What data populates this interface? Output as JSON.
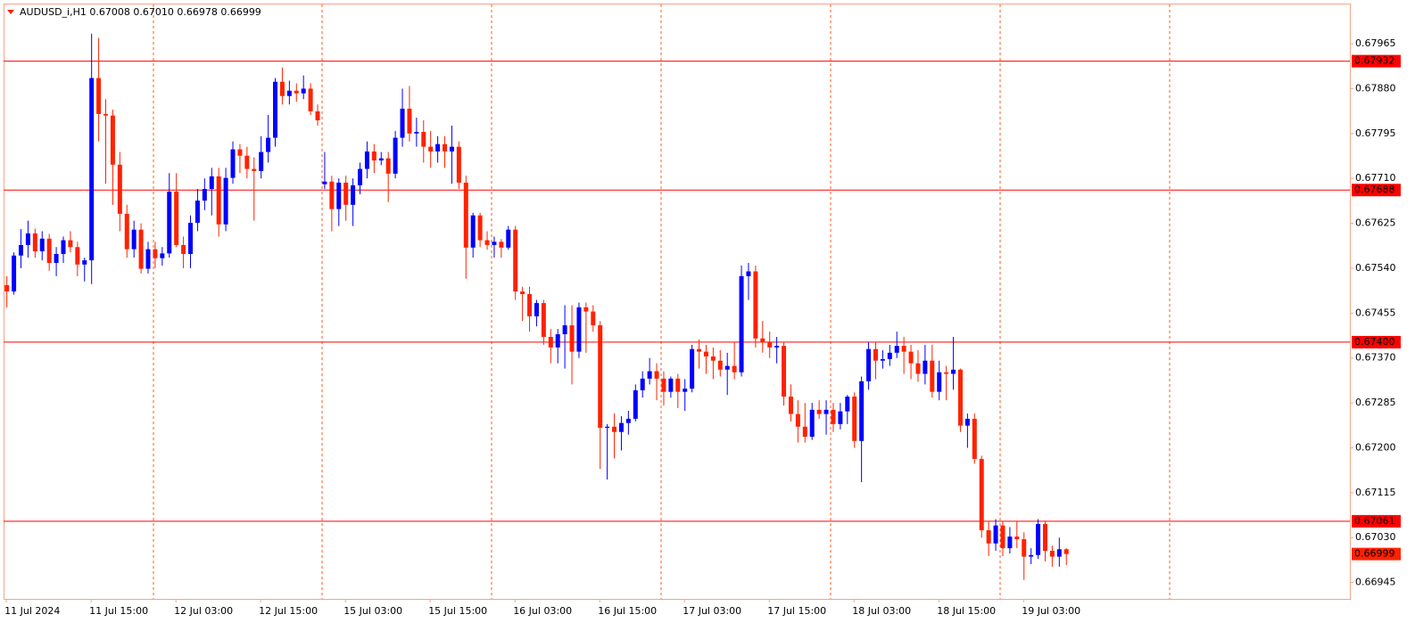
{
  "chart_data": {
    "type": "candlestick",
    "title": "AUDUSD_i,H1  0.67008 0.67010 0.66978 0.66999",
    "bull_color": "#0000ff",
    "bear_color": "#ff2200",
    "level_color": "#ff0000",
    "grid": true,
    "ylim": [
      0.66914,
      0.68041
    ],
    "yticks": [
      0.66945,
      {
        "value": 0.6703,
        "label": "0.67030"
      },
      0.67115,
      {
        "value": 0.672,
        "label": "0.67200"
      },
      0.67285,
      {
        "value": 0.6737,
        "label": "0.67370"
      },
      0.67455,
      {
        "value": 0.6754,
        "label": "0.67540"
      },
      0.67625,
      {
        "value": 0.6771,
        "label": "0.67710"
      },
      0.67795,
      {
        "value": 0.6788,
        "label": "0.67880"
      },
      0.67965
    ],
    "xlim": [
      -0.4,
      190.2
    ],
    "xticks": [
      {
        "value": 0,
        "label": "11 Jul 2024"
      },
      {
        "value": 12,
        "label": "11 Jul 15:00"
      },
      {
        "value": 24,
        "label": "12 Jul 03:00"
      },
      {
        "value": 36,
        "label": "12 Jul 15:00"
      },
      {
        "value": 48,
        "label": "15 Jul 03:00"
      },
      {
        "value": 60,
        "label": "15 Jul 15:00"
      },
      {
        "value": 72,
        "label": "16 Jul 03:00"
      },
      {
        "value": 84,
        "label": "16 Jul 15:00"
      },
      {
        "value": 96,
        "label": "17 Jul 03:00"
      },
      {
        "value": 108,
        "label": "17 Jul 15:00"
      },
      {
        "value": 120,
        "label": "18 Jul 03:00"
      },
      {
        "value": 132,
        "label": "18 Jul 15:00"
      },
      {
        "value": 144,
        "label": "19 Jul 03:00"
      }
    ],
    "levels": [
      0.67932,
      0.67688,
      {
        "value": 0.674,
        "label": "0.67400"
      },
      0.67061
    ],
    "last_price": 0.66999,
    "candles": [
      [
        0.67508,
        0.67525,
        0.67466,
        0.67496
      ],
      [
        0.67496,
        0.6757,
        0.6749,
        0.67564
      ],
      [
        0.67564,
        0.67614,
        0.6754,
        0.67584
      ],
      [
        0.67584,
        0.6763,
        0.6756,
        0.67606
      ],
      [
        0.67606,
        0.67615,
        0.6756,
        0.67572
      ],
      [
        0.67572,
        0.6761,
        0.67555,
        0.67596
      ],
      [
        0.67596,
        0.67605,
        0.67535,
        0.6755
      ],
      [
        0.6755,
        0.6758,
        0.67525,
        0.67567
      ],
      [
        0.67567,
        0.676,
        0.6755,
        0.67593
      ],
      [
        0.67593,
        0.6761,
        0.6757,
        0.6758
      ],
      [
        0.6758,
        0.6759,
        0.67525,
        0.67547
      ],
      [
        0.67547,
        0.6756,
        0.67515,
        0.67555
      ],
      [
        0.67555,
        0.67984,
        0.6751,
        0.679
      ],
      [
        0.679,
        0.67976,
        0.6778,
        0.67832
      ],
      [
        0.67832,
        0.6786,
        0.677,
        0.67829
      ],
      [
        0.67829,
        0.6784,
        0.6766,
        0.67736
      ],
      [
        0.67736,
        0.6776,
        0.6761,
        0.67643
      ],
      [
        0.67643,
        0.6766,
        0.6756,
        0.67576
      ],
      [
        0.67576,
        0.6763,
        0.6756,
        0.67613
      ],
      [
        0.67613,
        0.67625,
        0.6753,
        0.67539
      ],
      [
        0.67539,
        0.6759,
        0.6753,
        0.67576
      ],
      [
        0.67576,
        0.6759,
        0.6754,
        0.67559
      ],
      [
        0.67559,
        0.6758,
        0.67545,
        0.67568
      ],
      [
        0.67568,
        0.6772,
        0.6756,
        0.67685
      ],
      [
        0.67685,
        0.6772,
        0.6758,
        0.67584
      ],
      [
        0.67584,
        0.676,
        0.6754,
        0.67567
      ],
      [
        0.67567,
        0.6764,
        0.6754,
        0.67626
      ],
      [
        0.67626,
        0.6769,
        0.6761,
        0.67668
      ],
      [
        0.67668,
        0.6771,
        0.6765,
        0.6769
      ],
      [
        0.6769,
        0.6773,
        0.6764,
        0.67714
      ],
      [
        0.67714,
        0.6773,
        0.676,
        0.67623
      ],
      [
        0.67623,
        0.6773,
        0.6761,
        0.67711
      ],
      [
        0.67711,
        0.6778,
        0.677,
        0.67765
      ],
      [
        0.67765,
        0.67775,
        0.6772,
        0.67753
      ],
      [
        0.67753,
        0.6777,
        0.6771,
        0.67728
      ],
      [
        0.67728,
        0.6775,
        0.6763,
        0.67724
      ],
      [
        0.67724,
        0.6779,
        0.6771,
        0.6776
      ],
      [
        0.6776,
        0.6783,
        0.6774,
        0.67787
      ],
      [
        0.67787,
        0.679,
        0.6777,
        0.67893
      ],
      [
        0.67893,
        0.6792,
        0.6785,
        0.67866
      ],
      [
        0.67866,
        0.67895,
        0.6785,
        0.67876
      ],
      [
        0.67876,
        0.6789,
        0.67855,
        0.67871
      ],
      [
        0.67871,
        0.67905,
        0.6786,
        0.6788
      ],
      [
        0.6788,
        0.6789,
        0.6783,
        0.67837
      ],
      [
        0.67837,
        0.6785,
        0.6781,
        0.6782
      ],
      [
        0.67699,
        0.6776,
        0.6769,
        0.67704
      ],
      [
        0.67704,
        0.67715,
        0.6761,
        0.67652
      ],
      [
        0.67652,
        0.6771,
        0.6762,
        0.67702
      ],
      [
        0.67702,
        0.67715,
        0.6763,
        0.6766
      ],
      [
        0.6766,
        0.6771,
        0.6762,
        0.67697
      ],
      [
        0.67697,
        0.6774,
        0.6768,
        0.67728
      ],
      [
        0.67728,
        0.6778,
        0.6771,
        0.67761
      ],
      [
        0.67761,
        0.67775,
        0.6772,
        0.67744
      ],
      [
        0.67744,
        0.6776,
        0.67735,
        0.67748
      ],
      [
        0.67748,
        0.6776,
        0.67665,
        0.67719
      ],
      [
        0.67719,
        0.678,
        0.6771,
        0.67787
      ],
      [
        0.67787,
        0.6788,
        0.6777,
        0.67842
      ],
      [
        0.67842,
        0.67885,
        0.6778,
        0.67795
      ],
      [
        0.67795,
        0.67825,
        0.6777,
        0.67798
      ],
      [
        0.67798,
        0.6782,
        0.6774,
        0.6777
      ],
      [
        0.6777,
        0.678,
        0.6773,
        0.67761
      ],
      [
        0.67761,
        0.6779,
        0.6774,
        0.67775
      ],
      [
        0.67775,
        0.6779,
        0.6773,
        0.67761
      ],
      [
        0.67761,
        0.6781,
        0.677,
        0.6777
      ],
      [
        0.6777,
        0.6778,
        0.6769,
        0.67702
      ],
      [
        0.67702,
        0.67715,
        0.6752,
        0.67579
      ],
      [
        0.67579,
        0.67645,
        0.6756,
        0.6764
      ],
      [
        0.6764,
        0.67645,
        0.6758,
        0.67593
      ],
      [
        0.67593,
        0.6761,
        0.67575,
        0.67584
      ],
      [
        0.67584,
        0.676,
        0.6756,
        0.6759
      ],
      [
        0.6759,
        0.67595,
        0.6756,
        0.67579
      ],
      [
        0.67579,
        0.6762,
        0.67575,
        0.67613
      ],
      [
        0.67613,
        0.6762,
        0.6748,
        0.67496
      ],
      [
        0.67496,
        0.67505,
        0.6744,
        0.67491
      ],
      [
        0.67491,
        0.67505,
        0.6742,
        0.67449
      ],
      [
        0.67449,
        0.6748,
        0.6743,
        0.67474
      ],
      [
        0.67474,
        0.6748,
        0.67395,
        0.6741
      ],
      [
        0.6741,
        0.67425,
        0.6736,
        0.6739
      ],
      [
        0.6739,
        0.67425,
        0.6736,
        0.67415
      ],
      [
        0.67415,
        0.6747,
        0.6735,
        0.67432
      ],
      [
        0.67432,
        0.6747,
        0.6732,
        0.67382
      ],
      [
        0.67382,
        0.67475,
        0.6737,
        0.67466
      ],
      [
        0.67466,
        0.67475,
        0.6738,
        0.67458
      ],
      [
        0.67458,
        0.6747,
        0.6742,
        0.67432
      ],
      [
        0.67432,
        0.6744,
        0.6716,
        0.67238
      ],
      [
        0.67238,
        0.67245,
        0.6714,
        0.6724
      ],
      [
        0.6724,
        0.67265,
        0.6718,
        0.6723
      ],
      [
        0.6723,
        0.6726,
        0.67195,
        0.67247
      ],
      [
        0.67247,
        0.6727,
        0.67225,
        0.67255
      ],
      [
        0.67255,
        0.6732,
        0.6725,
        0.67309
      ],
      [
        0.67309,
        0.67345,
        0.67295,
        0.67331
      ],
      [
        0.67331,
        0.6737,
        0.6732,
        0.67345
      ],
      [
        0.67345,
        0.6736,
        0.6729,
        0.67331
      ],
      [
        0.67331,
        0.67345,
        0.6728,
        0.67306
      ],
      [
        0.67306,
        0.67335,
        0.67295,
        0.67331
      ],
      [
        0.67331,
        0.6734,
        0.67275,
        0.67306
      ],
      [
        0.67306,
        0.6733,
        0.6727,
        0.67312
      ],
      [
        0.67312,
        0.67395,
        0.67305,
        0.67387
      ],
      [
        0.67387,
        0.67405,
        0.6735,
        0.67382
      ],
      [
        0.67382,
        0.67395,
        0.6734,
        0.67373
      ],
      [
        0.67373,
        0.6739,
        0.6733,
        0.67365
      ],
      [
        0.67365,
        0.67385,
        0.67335,
        0.67348
      ],
      [
        0.67348,
        0.6738,
        0.673,
        0.67355
      ],
      [
        0.67355,
        0.674,
        0.6733,
        0.67343
      ],
      [
        0.67343,
        0.67545,
        0.67335,
        0.67525
      ],
      [
        0.67525,
        0.6755,
        0.6748,
        0.67534
      ],
      [
        0.67534,
        0.67545,
        0.6739,
        0.67407
      ],
      [
        0.67407,
        0.6744,
        0.6738,
        0.674
      ],
      [
        0.674,
        0.6742,
        0.6737,
        0.6739
      ],
      [
        0.6739,
        0.6741,
        0.6736,
        0.67393
      ],
      [
        0.67393,
        0.674,
        0.6728,
        0.67297
      ],
      [
        0.67297,
        0.6732,
        0.6725,
        0.67264
      ],
      [
        0.67264,
        0.6729,
        0.6721,
        0.6724
      ],
      [
        0.6724,
        0.67285,
        0.6721,
        0.67221
      ],
      [
        0.67221,
        0.67285,
        0.67215,
        0.67272
      ],
      [
        0.67272,
        0.6729,
        0.67255,
        0.67264
      ],
      [
        0.67264,
        0.6729,
        0.67225,
        0.67272
      ],
      [
        0.67272,
        0.67285,
        0.6723,
        0.67245
      ],
      [
        0.67245,
        0.67285,
        0.67235,
        0.67269
      ],
      [
        0.67269,
        0.673,
        0.67245,
        0.67297
      ],
      [
        0.67297,
        0.67305,
        0.672,
        0.67213
      ],
      [
        0.67213,
        0.67335,
        0.67135,
        0.67326
      ],
      [
        0.67326,
        0.674,
        0.6731,
        0.67387
      ],
      [
        0.67387,
        0.674,
        0.6733,
        0.67365
      ],
      [
        0.67365,
        0.67385,
        0.6735,
        0.67368
      ],
      [
        0.67368,
        0.67395,
        0.67355,
        0.6738
      ],
      [
        0.6738,
        0.6742,
        0.6737,
        0.67393
      ],
      [
        0.67393,
        0.6741,
        0.6734,
        0.67382
      ],
      [
        0.67382,
        0.67395,
        0.6733,
        0.6736
      ],
      [
        0.6736,
        0.67385,
        0.67325,
        0.6734
      ],
      [
        0.6734,
        0.67395,
        0.6732,
        0.67365
      ],
      [
        0.67365,
        0.67395,
        0.67295,
        0.67306
      ],
      [
        0.67306,
        0.67365,
        0.6729,
        0.67343
      ],
      [
        0.67343,
        0.67355,
        0.6729,
        0.6734
      ],
      [
        0.6734,
        0.6741,
        0.6731,
        0.67348
      ],
      [
        0.67348,
        0.6735,
        0.6723,
        0.67242
      ],
      [
        0.67242,
        0.67265,
        0.672,
        0.67255
      ],
      [
        0.67255,
        0.67265,
        0.6717,
        0.67179
      ],
      [
        0.67179,
        0.67185,
        0.6703,
        0.67044
      ],
      [
        0.67044,
        0.6706,
        0.66995,
        0.67019
      ],
      [
        0.67019,
        0.67065,
        0.67005,
        0.67053
      ],
      [
        0.67053,
        0.6706,
        0.66995,
        0.6701
      ],
      [
        0.6701,
        0.6705,
        0.67,
        0.67032
      ],
      [
        0.67032,
        0.6706,
        0.6701,
        0.67027
      ],
      [
        0.67027,
        0.6704,
        0.6695,
        0.66994
      ],
      [
        0.66994,
        0.6701,
        0.6698,
        0.66997
      ],
      [
        0.66997,
        0.67065,
        0.6699,
        0.67056
      ],
      [
        0.67056,
        0.67062,
        0.66985,
        0.67005
      ],
      [
        0.67005,
        0.67015,
        0.66975,
        0.66994
      ],
      [
        0.66994,
        0.6703,
        0.66975,
        0.67008
      ],
      [
        0.67008,
        0.6701,
        0.66978,
        0.66999
      ]
    ]
  }
}
